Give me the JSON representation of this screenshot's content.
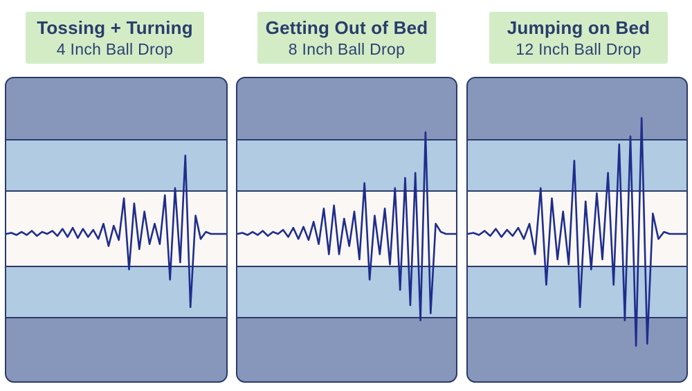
{
  "colors": {
    "title_bg": "#d3ecc6",
    "title_text": "#283e6b",
    "outer_band": "#8797bb",
    "inner_band": "#b0cbe2",
    "center_band": "#fbf7f5",
    "border": "#2b3a6a",
    "wave": "#1e2d8c"
  },
  "chart_data": [
    {
      "type": "line",
      "title": "Tossing + Turning",
      "subtitle": "4 Inch Ball Drop",
      "peak_amplitude": 0.77,
      "series": [
        {
          "values": [
            0,
            0.01,
            -0.01,
            0.02,
            -0.01,
            0.03,
            -0.02,
            0.02,
            0,
            0.03,
            -0.02,
            0.05,
            -0.03,
            0.06,
            -0.04,
            0.05,
            -0.03,
            0.04,
            -0.05,
            0.1,
            -0.12,
            0.08,
            -0.06,
            0.35,
            -0.35,
            0.3,
            -0.15,
            0.22,
            -0.1,
            0.1,
            -0.1,
            0.38,
            -0.45,
            0.45,
            -0.28,
            0.77,
            -0.72,
            0.18,
            -0.05,
            0.02,
            0,
            0,
            0,
            0
          ]
        }
      ]
    },
    {
      "type": "line",
      "title": "Getting Out of Bed",
      "subtitle": "8 Inch Ball Drop",
      "peak_amplitude": 1.0,
      "series": [
        {
          "values": [
            0,
            0.01,
            -0.01,
            0.02,
            -0.01,
            0.03,
            -0.02,
            0.02,
            0,
            0.04,
            -0.03,
            0.06,
            -0.05,
            0.07,
            -0.06,
            0.12,
            -0.1,
            0.25,
            -0.2,
            0.28,
            -0.2,
            0.15,
            -0.12,
            0.22,
            -0.25,
            0.5,
            -0.45,
            0.18,
            -0.2,
            0.25,
            -0.3,
            0.45,
            -0.55,
            0.55,
            -0.7,
            0.6,
            -0.85,
            1.0,
            -0.78,
            0.1,
            0.02,
            0,
            0,
            0
          ]
        }
      ]
    },
    {
      "type": "line",
      "title": "Jumping on Bed",
      "subtitle": "12 Inch Ball Drop",
      "peak_amplitude": 1.14,
      "series": [
        {
          "values": [
            0,
            0.01,
            -0.01,
            0.03,
            -0.02,
            0.05,
            -0.03,
            0.04,
            -0.02,
            0.06,
            -0.05,
            0.1,
            -0.2,
            0.45,
            -0.5,
            0.35,
            -0.25,
            0.22,
            -0.3,
            0.72,
            -0.72,
            0.32,
            -0.35,
            0.4,
            -0.25,
            0.6,
            -0.5,
            0.88,
            -0.85,
            0.96,
            -1.1,
            1.14,
            -1.08,
            0.2,
            -0.05,
            0.02,
            0,
            0,
            0,
            0
          ]
        }
      ]
    }
  ]
}
